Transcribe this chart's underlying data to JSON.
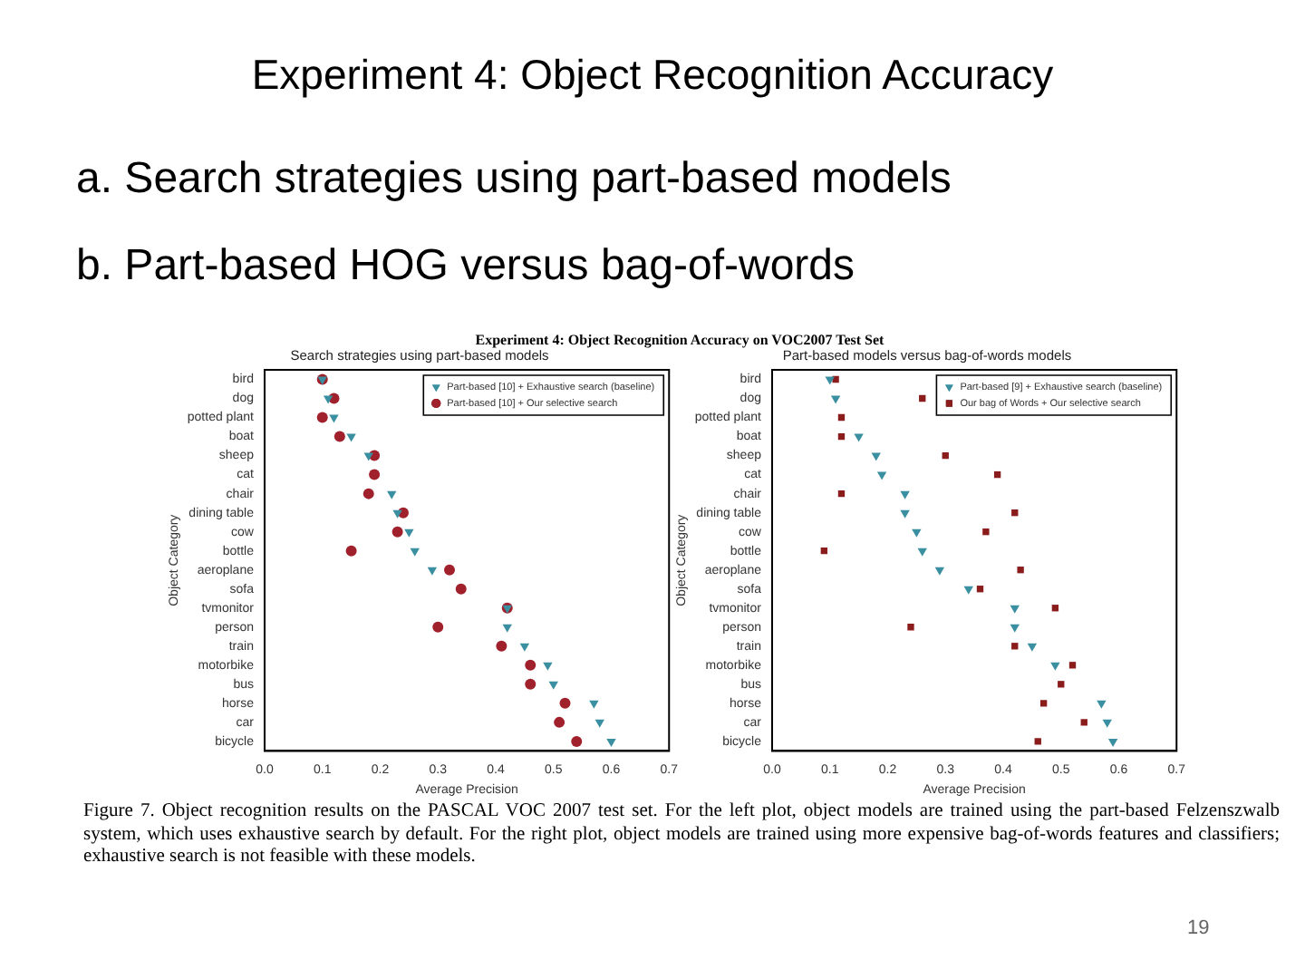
{
  "chart_data": [
    {
      "type": "other",
      "title": "Experiment 4: Object Recognition Accuracy",
      "annotations": [
        "a.  Search strategies using part-based models",
        "b.  Part-based HOG versus bag-of-words",
        "Experiment 4: Object Recognition Accuracy on VOC2007 Test Set",
        "Figure 7. Object recognition results on the PASCAL VOC 2007 test set.  For the left plot, object models are trained using the part-based Felzenszwalb system, which uses exhaustive search by default.  For the right plot, object models are trained using more expensive bag-of-words features and classifiers; exhaustive search is not feasible with these models.",
        "19"
      ]
    },
    {
      "type": "scatter",
      "title": "Search strategies using part-based models",
      "xlabel": "Average Precision",
      "ylabel": "Object Category",
      "orientation": "horizontal",
      "categories": [
        "bird",
        "dog",
        "potted plant",
        "boat",
        "sheep",
        "cat",
        "chair",
        "dining table",
        "cow",
        "bottle",
        "aeroplane",
        "sofa",
        "tvmonitor",
        "person",
        "train",
        "motorbike",
        "bus",
        "horse",
        "car",
        "bicycle"
      ],
      "xlim": [
        0,
        0.7
      ],
      "xticks": [
        {
          "value": 0,
          "label": "0.0"
        },
        0.1,
        0.2,
        0.3,
        0.4,
        0.5,
        0.6,
        0.7
      ],
      "grid": false,
      "legend": "top right",
      "series": [
        {
          "name": "Part-based [10] + Exhaustive search (baseline)",
          "color": "#3a8fa0",
          "marker": "triangle",
          "values": [
            0.1,
            0.11,
            0.12,
            0.15,
            0.18,
            null,
            0.22,
            0.23,
            0.25,
            0.26,
            0.29,
            null,
            0.42,
            0.42,
            0.45,
            0.49,
            0.5,
            0.57,
            0.58,
            0.6
          ]
        },
        {
          "name": "Part-based [10] + Our selective search",
          "color": "#a0202c",
          "marker": "circle",
          "values": [
            0.1,
            0.12,
            0.1,
            0.13,
            0.19,
            0.19,
            0.18,
            0.24,
            0.23,
            0.15,
            0.32,
            0.34,
            0.42,
            0.3,
            0.41,
            0.46,
            0.46,
            0.52,
            0.51,
            0.54
          ]
        }
      ]
    },
    {
      "type": "scatter",
      "title": "Part-based models versus bag-of-words models",
      "xlabel": "Average Precision",
      "ylabel": "Object Category",
      "orientation": "horizontal",
      "categories": [
        "bird",
        "dog",
        "potted plant",
        "boat",
        "sheep",
        "cat",
        "chair",
        "dining table",
        "cow",
        "bottle",
        "aeroplane",
        "sofa",
        "tvmonitor",
        "person",
        "train",
        "motorbike",
        "bus",
        "horse",
        "car",
        "bicycle"
      ],
      "xlim": [
        0,
        0.7
      ],
      "xticks": [
        {
          "value": 0,
          "label": "0.0"
        },
        0.1,
        0.2,
        0.3,
        0.4,
        0.5,
        0.6,
        0.7
      ],
      "grid": false,
      "legend": "top right",
      "series": [
        {
          "name": "Part-based [9] + Exhaustive search (baseline)",
          "color": "#3a8fa0",
          "marker": "triangle",
          "values": [
            0.1,
            0.11,
            null,
            0.15,
            0.18,
            0.19,
            0.23,
            0.23,
            0.25,
            0.26,
            0.29,
            0.34,
            0.42,
            0.42,
            0.45,
            0.49,
            null,
            0.57,
            0.58,
            0.59
          ]
        },
        {
          "name": "Our bag of Words + Our selective search",
          "color": "#8b1c1c",
          "marker": "square",
          "values": [
            0.11,
            0.26,
            0.12,
            0.12,
            0.3,
            0.39,
            0.12,
            0.42,
            0.37,
            0.09,
            0.43,
            0.36,
            0.49,
            0.24,
            0.42,
            0.52,
            0.5,
            0.47,
            0.54,
            0.46
          ]
        }
      ]
    }
  ]
}
